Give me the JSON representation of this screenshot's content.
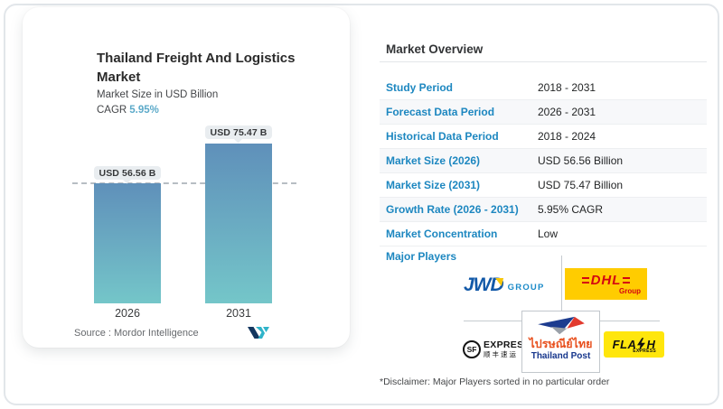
{
  "chart_card": {
    "title": "Thailand Freight And Logistics Market",
    "subtitle": "Market Size in USD Billion",
    "cagr_label": "CAGR",
    "cagr_value": "5.95%",
    "source": "Source :  Mordor Intelligence"
  },
  "chart_data": {
    "type": "bar",
    "categories": [
      "2026",
      "2031"
    ],
    "values": [
      56.56,
      75.47
    ],
    "bar_labels": [
      "USD 56.56 B",
      "USD 75.47 B"
    ],
    "title": "Thailand Freight And Logistics Market",
    "ylabel": "Market Size in USD Billion",
    "unit": "USD Billion",
    "ylim": [
      0,
      80
    ],
    "reference_line_value": 56.56,
    "grid": false,
    "bar_color_top": "#5f90ba",
    "bar_color_bottom": "#74c6c9"
  },
  "overview": {
    "title": "Market Overview",
    "rows": [
      {
        "label": "Study Period",
        "value": "2018 - 2031"
      },
      {
        "label": "Forecast Data Period",
        "value": "2026 - 2031"
      },
      {
        "label": "Historical Data Period",
        "value": "2018 - 2024"
      },
      {
        "label": "Market Size (2026)",
        "value": "USD 56.56 Billion"
      },
      {
        "label": "Market Size (2031)",
        "value": "USD 75.47 Billion"
      },
      {
        "label": "Growth Rate (2026 - 2031)",
        "value": "5.95% CAGR"
      },
      {
        "label": "Market Concentration",
        "value": "Low"
      }
    ],
    "major_players_label": "Major Players",
    "disclaimer": "*Disclaimer: Major Players sorted in no particular order"
  },
  "players": {
    "jwd": {
      "name": "JWD Group",
      "word": "JWD",
      "suffix": "GROUP"
    },
    "dhl": {
      "name": "DHL Group",
      "word": "DHL",
      "sub": "Group"
    },
    "sf": {
      "name": "SF Express",
      "circle": "SF",
      "word": "EXPRESS",
      "cn": "顺丰速运"
    },
    "thailand_post": {
      "name": "Thailand Post",
      "thai": "ไปรษณีย์ไทย",
      "en": "Thailand Post"
    },
    "flash": {
      "name": "Flash Express",
      "pre": "FLA",
      "post": "H",
      "sub": "EXPRESS"
    }
  },
  "colors": {
    "accent_blue": "#1d87c0",
    "cagr_teal": "#5caac9",
    "dhl_yellow": "#ffcc00",
    "dhl_red": "#d40511",
    "flash_yellow": "#ffe60c",
    "jwd_blue": "#1259a8",
    "thailand_post_navy": "#16368c",
    "thailand_post_red": "#e8501e"
  }
}
